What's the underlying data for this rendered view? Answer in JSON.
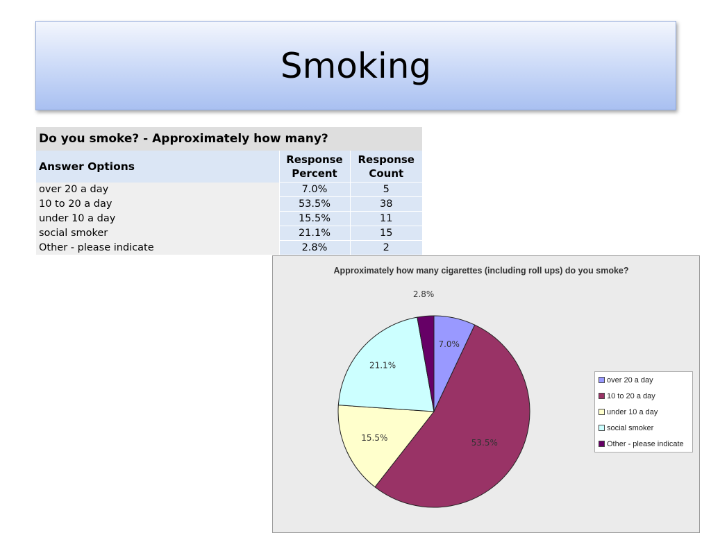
{
  "slide": {
    "title": "Smoking"
  },
  "table": {
    "question": "Do you smoke? - Approximately how many?",
    "headers": {
      "option": "Answer Options",
      "percent": "Response Percent",
      "count": "Response Count"
    },
    "rows": [
      {
        "option": "over 20 a day",
        "percent": "7.0%",
        "count": "5"
      },
      {
        "option": "10 to 20 a day",
        "percent": "53.5%",
        "count": "38"
      },
      {
        "option": "under 10 a day",
        "percent": "15.5%",
        "count": "11"
      },
      {
        "option": "social smoker",
        "percent": "21.1%",
        "count": "15"
      },
      {
        "option": "Other - please indicate",
        "percent": "2.8%",
        "count": "2"
      }
    ]
  },
  "chart_data": {
    "type": "pie",
    "title": "Approximately how many cigarettes (including roll ups) do you smoke?",
    "categories": [
      "over 20 a day",
      "10 to 20 a day",
      "under 10 a day",
      "social smoker",
      "Other - please indicate"
    ],
    "values": [
      7.0,
      53.5,
      15.5,
      21.1,
      2.8
    ],
    "labels": [
      "7.0%",
      "53.5%",
      "15.5%",
      "21.1%",
      "2.8%"
    ],
    "colors": [
      "#9999ff",
      "#993366",
      "#ffffcc",
      "#ccffff",
      "#660066"
    ],
    "legend": "right"
  }
}
